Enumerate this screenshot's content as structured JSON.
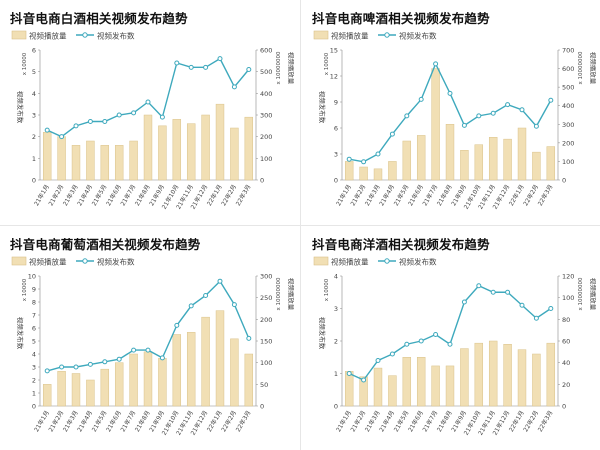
{
  "colors": {
    "bar": "#f1dfb4",
    "bar_stroke": "#d9c28a",
    "line": "#3ea9bd",
    "axis": "#888888",
    "grid": "#eeeeee",
    "text": "#444444"
  },
  "legend": {
    "bar_label": "视频播放量",
    "line_label": "视频发布数"
  },
  "chart_data": [
    {
      "type": "bar+line",
      "title": "抖音电商白酒相关视频发布趋势",
      "categories": [
        "21年1月",
        "21年2月",
        "21年3月",
        "21年4月",
        "21年5月",
        "21年6月",
        "21年7月",
        "21年8月",
        "21年9月",
        "21年10月",
        "21年11月",
        "21年12月",
        "22年1月",
        "22年2月",
        "22年3月"
      ],
      "left_axis": {
        "label": "视频发布数",
        "unit": "x 10000",
        "ticks": [
          "0",
          "1",
          "2",
          "3",
          "4",
          "5",
          "6"
        ],
        "range": [
          0,
          6
        ]
      },
      "right_axis": {
        "label": "视频播放量",
        "unit": "x 10000000",
        "ticks": [
          "0",
          "100",
          "200",
          "300",
          "400",
          "500",
          "600"
        ],
        "range": [
          0,
          600
        ]
      },
      "bar_series": {
        "name": "视频播放量",
        "values": [
          220,
          200,
          160,
          180,
          160,
          160,
          180,
          300,
          250,
          280,
          260,
          300,
          350,
          240,
          290
        ]
      },
      "line_series": {
        "name": "视频发布数",
        "values": [
          2.3,
          2.0,
          2.5,
          2.7,
          2.7,
          3.0,
          3.1,
          3.6,
          2.9,
          5.4,
          5.2,
          5.2,
          5.6,
          4.3,
          5.1
        ]
      }
    },
    {
      "type": "bar+line",
      "title": "抖音电商啤酒相关视频发布趋势",
      "categories": [
        "21年1月",
        "21年2月",
        "21年3月",
        "21年4月",
        "21年5月",
        "21年6月",
        "21年7月",
        "21年8月",
        "21年9月",
        "21年10月",
        "21年11月",
        "21年12月",
        "22年1月",
        "22年2月",
        "22年3月"
      ],
      "left_axis": {
        "label": "视频发布数",
        "unit": "x 10000",
        "ticks": [
          "0",
          "3",
          "6",
          "9",
          "12",
          "15"
        ],
        "range": [
          0,
          15
        ]
      },
      "right_axis": {
        "label": "视频播放量",
        "unit": "x 10000000",
        "ticks": [
          "0",
          "100",
          "200",
          "300",
          "400",
          "500",
          "600",
          "700"
        ],
        "range": [
          0,
          700
        ]
      },
      "bar_series": {
        "name": "视频播放量",
        "values": [
          100,
          70,
          60,
          100,
          210,
          240,
          600,
          300,
          160,
          190,
          230,
          220,
          280,
          150,
          180
        ]
      },
      "line_series": {
        "name": "视频发布数",
        "values": [
          2.4,
          2.1,
          3.0,
          5.3,
          7.4,
          9.3,
          13.4,
          10.0,
          6.3,
          7.4,
          7.7,
          8.7,
          8.1,
          6.2,
          9.2
        ]
      }
    },
    {
      "type": "bar+line",
      "title": "抖音电商葡萄酒相关视频发布趋势",
      "categories": [
        "21年1月",
        "21年2月",
        "21年3月",
        "21年4月",
        "21年5月",
        "21年6月",
        "21年7月",
        "21年8月",
        "21年9月",
        "21年10月",
        "21年11月",
        "21年12月",
        "22年1月",
        "22年2月",
        "22年3月"
      ],
      "left_axis": {
        "label": "视频发布数",
        "unit": "x 10000",
        "ticks": [
          "0",
          "1",
          "2",
          "3",
          "4",
          "5",
          "6",
          "7",
          "8",
          "9",
          "10"
        ],
        "range": [
          0,
          10
        ]
      },
      "right_axis": {
        "label": "视频播放量",
        "unit": "x 10000000",
        "ticks": [
          "0",
          "50",
          "100",
          "150",
          "200",
          "250",
          "300"
        ],
        "range": [
          0,
          300
        ]
      },
      "bar_series": {
        "name": "视频播放量",
        "values": [
          50,
          80,
          75,
          60,
          85,
          100,
          120,
          125,
          110,
          165,
          170,
          205,
          220,
          155,
          120
        ]
      },
      "line_series": {
        "name": "视频发布数",
        "values": [
          2.7,
          3.0,
          3.0,
          3.2,
          3.4,
          3.6,
          4.3,
          4.3,
          3.7,
          6.2,
          7.7,
          8.5,
          9.6,
          7.8,
          5.2
        ]
      }
    },
    {
      "type": "bar+line",
      "title": "抖音电商洋酒相关视频发布趋势",
      "categories": [
        "21年1月",
        "21年2月",
        "21年3月",
        "21年4月",
        "21年5月",
        "21年6月",
        "21年7月",
        "21年8月",
        "21年9月",
        "21年10月",
        "21年11月",
        "21年12月",
        "22年1月",
        "22年2月",
        "22年3月"
      ],
      "left_axis": {
        "label": "视频发布数",
        "unit": "x 10000",
        "ticks": [
          "0",
          "1",
          "2",
          "3",
          "4"
        ],
        "range": [
          0,
          4
        ]
      },
      "right_axis": {
        "label": "视频播放量",
        "unit": "x 10000000",
        "ticks": [
          "0",
          "20",
          "40",
          "60",
          "80",
          "100",
          "120"
        ],
        "range": [
          0,
          120
        ]
      },
      "bar_series": {
        "name": "视频播放量",
        "values": [
          32,
          27,
          35,
          28,
          45,
          45,
          37,
          37,
          53,
          58,
          60,
          57,
          52,
          48,
          58
        ]
      },
      "line_series": {
        "name": "视频发布数",
        "values": [
          1.0,
          0.8,
          1.4,
          1.6,
          1.9,
          2.0,
          2.2,
          1.9,
          3.2,
          3.7,
          3.5,
          3.5,
          3.1,
          2.7,
          3.0
        ]
      }
    }
  ]
}
